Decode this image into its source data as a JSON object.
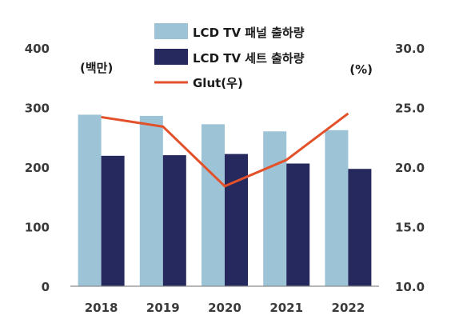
{
  "chart_data": {
    "type": "bar",
    "categories": [
      "2018",
      "2019",
      "2020",
      "2021",
      "2022"
    ],
    "series": [
      {
        "name": "LCD TV 패널 출하량",
        "type": "bar",
        "axis": "left",
        "color": "#9dc3d6",
        "values": [
          288,
          286,
          272,
          260,
          262
        ]
      },
      {
        "name": "LCD TV 세트 출하량",
        "type": "bar",
        "axis": "left",
        "color": "#26295e",
        "values": [
          219,
          220,
          222,
          206,
          197
        ]
      },
      {
        "name": "Glut(우)",
        "type": "line",
        "axis": "right",
        "color": "#e2512a",
        "values": [
          24.2,
          23.4,
          18.4,
          20.6,
          24.5
        ]
      }
    ],
    "y_left": {
      "unit": "(백만)",
      "min": 0,
      "max": 400,
      "ticks": [
        "0",
        "100",
        "200",
        "300",
        "400"
      ]
    },
    "y_right": {
      "unit": "(%)",
      "min": 10,
      "max": 30,
      "ticks": [
        "10.0",
        "15.0",
        "20.0",
        "25.0",
        "30.0"
      ]
    },
    "grid": false,
    "legend_position": "top-center"
  }
}
